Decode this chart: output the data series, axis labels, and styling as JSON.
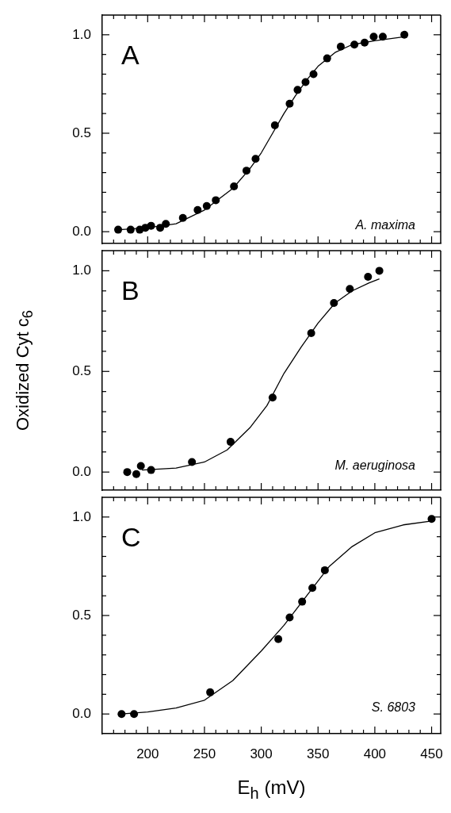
{
  "chart_data": [
    {
      "type": "scatter",
      "annotations": [
        "A",
        "A. maxima"
      ],
      "tick_labels": "y",
      "xlim": [
        160,
        458
      ],
      "ylim": [
        -0.06,
        1.1
      ],
      "xticks": [
        {
          "value": 170,
          "label": null
        },
        {
          "value": 180,
          "label": null
        },
        {
          "value": 190,
          "label": null
        },
        200,
        {
          "value": 210,
          "label": null
        },
        {
          "value": 220,
          "label": null
        },
        {
          "value": 230,
          "label": null
        },
        {
          "value": 240,
          "label": null
        },
        250,
        {
          "value": 260,
          "label": null
        },
        {
          "value": 270,
          "label": null
        },
        {
          "value": 280,
          "label": null
        },
        {
          "value": 290,
          "label": null
        },
        300,
        {
          "value": 310,
          "label": null
        },
        {
          "value": 320,
          "label": null
        },
        {
          "value": 330,
          "label": null
        },
        {
          "value": 340,
          "label": null
        },
        350,
        {
          "value": 360,
          "label": null
        },
        {
          "value": 370,
          "label": null
        },
        {
          "value": 380,
          "label": null
        },
        {
          "value": 390,
          "label": null
        },
        400,
        {
          "value": 410,
          "label": null
        },
        {
          "value": 420,
          "label": null
        },
        {
          "value": 430,
          "label": null
        },
        {
          "value": 440,
          "label": null
        },
        450
      ],
      "yticks": [
        {
          "value": 0,
          "label": "0.0"
        },
        {
          "value": 0.1,
          "label": null
        },
        {
          "value": 0.2,
          "label": null
        },
        {
          "value": 0.3,
          "label": null
        },
        {
          "value": 0.4,
          "label": null
        },
        {
          "value": 0.5,
          "label": "0.5"
        },
        {
          "value": 0.6,
          "label": null
        },
        {
          "value": 0.7,
          "label": null
        },
        {
          "value": 0.8,
          "label": null
        },
        {
          "value": 0.9,
          "label": null
        },
        {
          "value": 1.0,
          "label": "1.0"
        }
      ],
      "series": [
        {
          "type": "scatter",
          "marker": "circle",
          "color": "#000000",
          "x": [
            174,
            185,
            193,
            198,
            203,
            211,
            216,
            231,
            244,
            252,
            260,
            276,
            287,
            295,
            312,
            325,
            332,
            339,
            346,
            358,
            370,
            382,
            391,
            399,
            407,
            426
          ],
          "values": [
            0.01,
            0.01,
            0.01,
            0.02,
            0.03,
            0.02,
            0.04,
            0.07,
            0.11,
            0.13,
            0.16,
            0.23,
            0.31,
            0.37,
            0.54,
            0.65,
            0.72,
            0.76,
            0.8,
            0.88,
            0.94,
            0.95,
            0.96,
            0.99,
            0.99,
            1.0
          ]
        },
        {
          "type": "line",
          "marker": "none",
          "color": "#000000",
          "x": [
            175,
            200,
            225,
            250,
            275,
            290,
            300,
            310,
            320,
            330,
            340,
            350,
            365,
            380,
            400,
            426
          ],
          "values": [
            0.01,
            0.02,
            0.04,
            0.11,
            0.22,
            0.32,
            0.4,
            0.5,
            0.6,
            0.69,
            0.77,
            0.84,
            0.91,
            0.95,
            0.97,
            0.99
          ]
        }
      ]
    },
    {
      "type": "scatter",
      "annotations": [
        "B",
        "M. aeruginosa"
      ],
      "tick_labels": "y",
      "ylabel": "Oxidized Cyt c$_{6}$",
      "xlim": [
        160,
        458
      ],
      "ylim": [
        -0.09,
        1.1
      ],
      "xticks": [
        {
          "value": 170,
          "label": null
        },
        {
          "value": 180,
          "label": null
        },
        {
          "value": 190,
          "label": null
        },
        200,
        {
          "value": 210,
          "label": null
        },
        {
          "value": 220,
          "label": null
        },
        {
          "value": 230,
          "label": null
        },
        {
          "value": 240,
          "label": null
        },
        250,
        {
          "value": 260,
          "label": null
        },
        {
          "value": 270,
          "label": null
        },
        {
          "value": 280,
          "label": null
        },
        {
          "value": 290,
          "label": null
        },
        300,
        {
          "value": 310,
          "label": null
        },
        {
          "value": 320,
          "label": null
        },
        {
          "value": 330,
          "label": null
        },
        {
          "value": 340,
          "label": null
        },
        350,
        {
          "value": 360,
          "label": null
        },
        {
          "value": 370,
          "label": null
        },
        {
          "value": 380,
          "label": null
        },
        {
          "value": 390,
          "label": null
        },
        400,
        {
          "value": 410,
          "label": null
        },
        {
          "value": 420,
          "label": null
        },
        {
          "value": 430,
          "label": null
        },
        {
          "value": 440,
          "label": null
        },
        450
      ],
      "yticks": [
        {
          "value": 0,
          "label": "0.0"
        },
        {
          "value": 0.1,
          "label": null
        },
        {
          "value": 0.2,
          "label": null
        },
        {
          "value": 0.3,
          "label": null
        },
        {
          "value": 0.4,
          "label": null
        },
        {
          "value": 0.5,
          "label": "0.5"
        },
        {
          "value": 0.6,
          "label": null
        },
        {
          "value": 0.7,
          "label": null
        },
        {
          "value": 0.8,
          "label": null
        },
        {
          "value": 0.9,
          "label": null
        },
        {
          "value": 1.0,
          "label": "1.0"
        }
      ],
      "series": [
        {
          "type": "scatter",
          "marker": "circle",
          "color": "#000000",
          "x": [
            182,
            190,
            194,
            203,
            239,
            273,
            310,
            344,
            364,
            378,
            394,
            404
          ],
          "values": [
            0.0,
            -0.01,
            0.03,
            0.01,
            0.05,
            0.15,
            0.37,
            0.69,
            0.84,
            0.91,
            0.97,
            1.0
          ]
        },
        {
          "type": "line",
          "marker": "none",
          "color": "#000000",
          "x": [
            195,
            225,
            250,
            270,
            290,
            305,
            320,
            335,
            350,
            365,
            380,
            395,
            404
          ],
          "values": [
            0.01,
            0.02,
            0.05,
            0.11,
            0.22,
            0.33,
            0.49,
            0.62,
            0.74,
            0.84,
            0.9,
            0.94,
            0.96
          ]
        }
      ]
    },
    {
      "type": "scatter",
      "annotations": [
        "C",
        "S. 6803"
      ],
      "xlabel": "E$_{h}$ (mV)",
      "xlim": [
        160,
        458
      ],
      "ylim": [
        -0.1,
        1.1
      ],
      "xticks": [
        {
          "value": 170,
          "label": null
        },
        {
          "value": 180,
          "label": null
        },
        {
          "value": 190,
          "label": null
        },
        200,
        {
          "value": 210,
          "label": null
        },
        {
          "value": 220,
          "label": null
        },
        {
          "value": 230,
          "label": null
        },
        {
          "value": 240,
          "label": null
        },
        250,
        {
          "value": 260,
          "label": null
        },
        {
          "value": 270,
          "label": null
        },
        {
          "value": 280,
          "label": null
        },
        {
          "value": 290,
          "label": null
        },
        300,
        {
          "value": 310,
          "label": null
        },
        {
          "value": 320,
          "label": null
        },
        {
          "value": 330,
          "label": null
        },
        {
          "value": 340,
          "label": null
        },
        350,
        {
          "value": 360,
          "label": null
        },
        {
          "value": 370,
          "label": null
        },
        {
          "value": 380,
          "label": null
        },
        {
          "value": 390,
          "label": null
        },
        400,
        {
          "value": 410,
          "label": null
        },
        {
          "value": 420,
          "label": null
        },
        {
          "value": 430,
          "label": null
        },
        {
          "value": 440,
          "label": null
        },
        450
      ],
      "yticks": [
        {
          "value": 0,
          "label": "0.0"
        },
        {
          "value": 0.1,
          "label": null
        },
        {
          "value": 0.2,
          "label": null
        },
        {
          "value": 0.3,
          "label": null
        },
        {
          "value": 0.4,
          "label": null
        },
        {
          "value": 0.5,
          "label": "0.5"
        },
        {
          "value": 0.6,
          "label": null
        },
        {
          "value": 0.7,
          "label": null
        },
        {
          "value": 0.8,
          "label": null
        },
        {
          "value": 0.9,
          "label": null
        },
        {
          "value": 1.0,
          "label": "1.0"
        }
      ],
      "series": [
        {
          "type": "scatter",
          "marker": "circle",
          "color": "#000000",
          "x": [
            177,
            188,
            255,
            315,
            325,
            336,
            345,
            356,
            450
          ],
          "values": [
            0.0,
            0.0,
            0.11,
            0.38,
            0.49,
            0.57,
            0.64,
            0.73,
            0.99
          ]
        },
        {
          "type": "line",
          "marker": "none",
          "color": "#000000",
          "x": [
            177,
            200,
            225,
            250,
            275,
            300,
            320,
            340,
            360,
            380,
            400,
            425,
            450
          ],
          "values": [
            0.0,
            0.01,
            0.03,
            0.07,
            0.17,
            0.32,
            0.45,
            0.6,
            0.75,
            0.85,
            0.92,
            0.96,
            0.98
          ]
        }
      ]
    }
  ]
}
